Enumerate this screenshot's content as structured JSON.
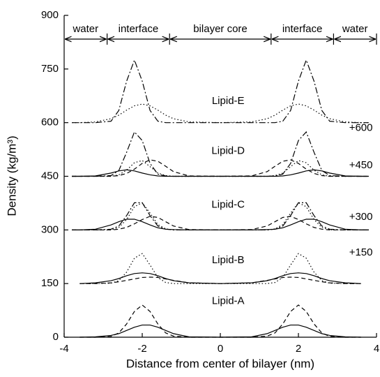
{
  "chart_data": {
    "type": "line",
    "xlabel": "Distance from center of bilayer (nm)",
    "ylabel": "Density (kg/m³)",
    "xlim": [
      -4,
      4
    ],
    "xticks": [
      -4,
      -2,
      0,
      2,
      4
    ],
    "ylim": [
      0,
      900
    ],
    "yticks": [
      0,
      150,
      300,
      450,
      600,
      750,
      900
    ],
    "x": [
      -3.8,
      -3.6,
      -3.2,
      -2.8,
      -2.6,
      -2.4,
      -2.2,
      -2.0,
      -1.8,
      -1.6,
      -1.4,
      -1.2,
      -0.8,
      0,
      0.8,
      1.2,
      1.4,
      1.6,
      1.8,
      2.0,
      2.2,
      2.4,
      2.6,
      2.8,
      3.2,
      3.6,
      3.8
    ],
    "series": [
      {
        "color": "#000000",
        "dash": "solid",
        "values": [
          null,
          0,
          1,
          5,
          10,
          19,
          28,
          34,
          34,
          28,
          19,
          10,
          1,
          0,
          1,
          10,
          19,
          28,
          34,
          34,
          28,
          19,
          10,
          5,
          1,
          0,
          null
        ]
      },
      {
        "color": "#000000",
        "dash": "dashed",
        "values": [
          null,
          0,
          0,
          2,
          12,
          37,
          72,
          90,
          72,
          37,
          12,
          3,
          0,
          0,
          0,
          3,
          12,
          37,
          72,
          90,
          72,
          37,
          12,
          2,
          0,
          0,
          null
        ]
      },
      {
        "color": "#000000",
        "dash": "solid",
        "values": [
          null,
          150,
          152,
          158,
          164,
          172,
          178,
          180,
          178,
          172,
          164,
          158,
          152,
          150,
          152,
          158,
          164,
          172,
          178,
          180,
          178,
          172,
          164,
          158,
          152,
          150,
          null
        ]
      },
      {
        "color": "#000000",
        "dash": "dashed",
        "values": [
          null,
          150,
          150,
          152,
          155,
          159,
          163,
          167,
          168,
          167,
          163,
          159,
          152,
          150,
          152,
          159,
          163,
          167,
          168,
          167,
          163,
          159,
          155,
          152,
          150,
          150,
          null
        ]
      },
      {
        "color": "#000000",
        "dash": "dotted",
        "values": [
          null,
          150,
          150,
          151,
          158,
          182,
          221,
          234,
          202,
          167,
          153,
          150,
          150,
          150,
          150,
          150,
          153,
          167,
          202,
          234,
          221,
          182,
          158,
          151,
          150,
          150,
          null
        ]
      },
      {
        "color": "#000000",
        "dash": "solid",
        "values": [
          300,
          300,
          302,
          314,
          323,
          330,
          330,
          323,
          314,
          306,
          302,
          301,
          300,
          300,
          300,
          301,
          302,
          306,
          314,
          323,
          330,
          330,
          323,
          314,
          302,
          300,
          300
        ]
      },
      {
        "color": "#000000",
        "dash": "dashed",
        "values": [
          300,
          300,
          300,
          300,
          302,
          307,
          317,
          329,
          338,
          335,
          323,
          311,
          301,
          300,
          301,
          311,
          323,
          335,
          338,
          329,
          317,
          307,
          302,
          300,
          300,
          300,
          300
        ]
      },
      {
        "color": "#000000",
        "dash": "dotted",
        "values": [
          300,
          300,
          300,
          300,
          307,
          329,
          365,
          376,
          347,
          315,
          303,
          300,
          300,
          300,
          300,
          300,
          303,
          315,
          347,
          376,
          365,
          329,
          307,
          300,
          300,
          300,
          300
        ]
      },
      {
        "color": "#000000",
        "dash": "dashdot",
        "values": [
          300,
          300,
          300,
          302,
          311,
          340,
          376,
          376,
          340,
          311,
          302,
          300,
          300,
          300,
          300,
          300,
          302,
          311,
          340,
          376,
          376,
          340,
          311,
          302,
          300,
          300,
          300
        ]
      },
      {
        "color": "#000000",
        "dash": "solid",
        "values": [
          450,
          450,
          451,
          459,
          465,
          468,
          465,
          459,
          454,
          451,
          450,
          450,
          450,
          450,
          450,
          450,
          450,
          451,
          454,
          459,
          465,
          468,
          465,
          459,
          451,
          450,
          450
        ]
      },
      {
        "color": "#000000",
        "dash": "dashed",
        "values": [
          450,
          450,
          450,
          450,
          452,
          458,
          470,
          486,
          496,
          492,
          478,
          463,
          451,
          450,
          451,
          463,
          478,
          492,
          496,
          486,
          470,
          458,
          452,
          450,
          450,
          450,
          450
        ]
      },
      {
        "color": "#000000",
        "dash": "dotted",
        "values": [
          450,
          450,
          450,
          450,
          454,
          467,
          488,
          494,
          477,
          459,
          452,
          450,
          450,
          450,
          450,
          450,
          452,
          459,
          477,
          494,
          488,
          467,
          454,
          450,
          450,
          450,
          450
        ]
      },
      {
        "color": "#000000",
        "dash": "dashdot",
        "values": [
          450,
          450,
          450,
          452,
          466,
          517,
          574,
          550,
          486,
          456,
          451,
          450,
          450,
          450,
          450,
          450,
          451,
          456,
          486,
          550,
          574,
          517,
          466,
          452,
          450,
          450,
          450
        ]
      },
      {
        "color": "#000000",
        "dash": "dotted",
        "values": [
          600,
          600,
          602,
          611,
          621,
          635,
          647,
          652,
          647,
          635,
          621,
          611,
          602,
          600,
          602,
          611,
          621,
          635,
          647,
          652,
          647,
          635,
          621,
          611,
          602,
          600,
          600
        ]
      },
      {
        "color": "#000000",
        "dash": "dashdot",
        "values": [
          600,
          600,
          600,
          604,
          634,
          716,
          775,
          716,
          634,
          604,
          600,
          600,
          600,
          600,
          600,
          600,
          600,
          604,
          634,
          716,
          775,
          716,
          634,
          604,
          600,
          600,
          600
        ]
      }
    ],
    "regions": [
      {
        "label": "water",
        "x": [
          -4,
          -2.9
        ]
      },
      {
        "label": "interface",
        "x": [
          -2.9,
          -1.3
        ]
      },
      {
        "label": "bilayer core",
        "x": [
          -1.3,
          1.3
        ]
      },
      {
        "label": "interface",
        "x": [
          1.3,
          2.9
        ]
      },
      {
        "label": "water",
        "x": [
          2.9,
          4
        ]
      }
    ],
    "annotations": [
      {
        "text": "Lipid-A",
        "x": 0.2,
        "y": 100
      },
      {
        "text": "Lipid-B",
        "x": 0.2,
        "y": 215
      },
      {
        "text": "Lipid-C",
        "x": 0.2,
        "y": 370
      },
      {
        "text": "Lipid-D",
        "x": 0.2,
        "y": 520
      },
      {
        "text": "Lipid-E",
        "x": 0.2,
        "y": 660
      },
      {
        "text": "+150",
        "x": 3.6,
        "y": 236
      },
      {
        "text": "+300",
        "x": 3.6,
        "y": 336
      },
      {
        "text": "+450",
        "x": 3.6,
        "y": 480
      },
      {
        "text": "+600",
        "x": 3.6,
        "y": 585
      }
    ]
  }
}
